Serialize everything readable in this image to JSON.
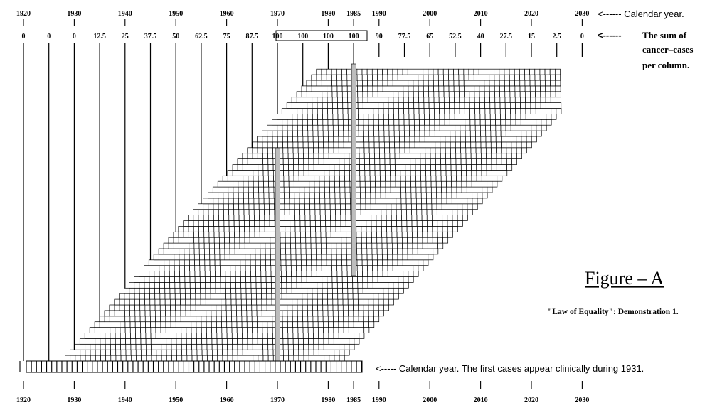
{
  "header": {
    "top_years": [
      "1920",
      "1930",
      "1940",
      "1950",
      "1960",
      "1970",
      "1980",
      "1985",
      "1990",
      "2000",
      "2010",
      "2020",
      "2030"
    ],
    "top_years_note": "<------ Calendar year.",
    "sum_values": [
      "0",
      "0",
      "0",
      "12.5",
      "25",
      "37.5",
      "50",
      "62.5",
      "75",
      "87.5",
      "100",
      "100",
      "100",
      "100",
      "90",
      "77.5",
      "65",
      "52.5",
      "40",
      "27.5",
      "15",
      "2.5",
      "0"
    ],
    "sum_note_arrow": "<------",
    "sum_note_lines": [
      "The sum of",
      "cancer–cases",
      "per column."
    ]
  },
  "footer": {
    "bottom_years": [
      "1920",
      "1930",
      "1940",
      "1950",
      "1960",
      "1970",
      "1980",
      "1985",
      "1990",
      "2000",
      "2010",
      "2020",
      "2030"
    ],
    "bottom_note": "<----- Calendar year.  The first cases appear clinically during 1931."
  },
  "figure": {
    "title": "Figure – A",
    "subtitle": "\"Law of Equality\": Demonstration 1."
  },
  "colors": {
    "ink": "#000000",
    "paper": "#ffffff",
    "shade": "#bdbdbd"
  }
}
